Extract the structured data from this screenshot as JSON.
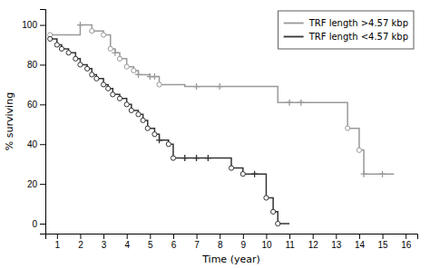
{
  "chart_data": {
    "type": "step",
    "xlabel": "Time (year)",
    "ylabel": "% surviving",
    "xlim": [
      0.5,
      16.5
    ],
    "ylim": [
      -5,
      108
    ],
    "xticks": [
      1,
      2,
      3,
      4,
      5,
      6,
      7,
      8,
      9,
      10,
      11,
      12,
      13,
      14,
      15,
      16
    ],
    "yticks": [
      0,
      20,
      40,
      60,
      80,
      100
    ],
    "grid": false,
    "legend": "upper right",
    "series": [
      {
        "name": "TRF length >4.57 kbp",
        "type": "step",
        "color": "#999999",
        "x": [
          0.7,
          1.0,
          2.0,
          2.0,
          2.5,
          3.0,
          3.3,
          3.5,
          3.7,
          4.0,
          4.3,
          4.5,
          5.0,
          5.2,
          5.4,
          6.5,
          7.0,
          8.0,
          10.5,
          11.0,
          11.5,
          13.0,
          13.5,
          14.0,
          14.2,
          15.0,
          15.5
        ],
        "values": [
          95,
          95,
          100,
          100,
          97,
          95,
          88,
          86,
          83,
          79,
          77,
          75,
          74,
          74,
          70,
          69,
          69,
          69,
          61,
          61,
          61,
          61,
          48,
          37,
          25,
          25,
          25
        ]
      },
      {
        "name": "TRF length <4.57 kbp",
        "type": "step",
        "color": "#333333",
        "x": [
          0.7,
          1.0,
          1.2,
          1.5,
          1.8,
          2.0,
          2.3,
          2.5,
          2.7,
          3.0,
          3.2,
          3.4,
          3.7,
          4.0,
          4.2,
          4.5,
          4.7,
          4.9,
          5.2,
          5.4,
          5.8,
          6.0,
          6.5,
          7.0,
          7.5,
          8.0,
          8.5,
          9.0,
          9.5,
          10.0,
          10.3,
          10.5,
          11.0
        ],
        "values": [
          93,
          90,
          88,
          86,
          83,
          80,
          78,
          75,
          73,
          70,
          68,
          65,
          63,
          60,
          57,
          55,
          52,
          48,
          45,
          42,
          40,
          33,
          33,
          33,
          33,
          33,
          28,
          25,
          25,
          13,
          6,
          0,
          0
        ]
      },
      {
        "type": "scatter",
        "marker": "circle",
        "color": "#999999",
        "x": [
          0.7,
          2.5,
          3.0,
          3.3,
          3.7,
          4.0,
          4.3,
          5.4,
          13.5,
          14.0
        ],
        "values": [
          95,
          97,
          95,
          88,
          83,
          79,
          77,
          70,
          48,
          37
        ]
      },
      {
        "type": "scatter",
        "marker": "plus",
        "color": "#999999",
        "x": [
          2.0,
          3.5,
          4.5,
          5.0,
          5.2,
          7.0,
          8.0,
          11.0,
          11.5,
          14.2,
          15.0
        ],
        "values": [
          100,
          86,
          75,
          74,
          74,
          69,
          69,
          61,
          61,
          25,
          25
        ]
      },
      {
        "type": "scatter",
        "marker": "circle",
        "color": "#333333",
        "x": [
          0.7,
          1.0,
          1.2,
          1.5,
          1.8,
          2.0,
          2.3,
          2.5,
          2.7,
          3.0,
          3.2,
          3.4,
          3.7,
          4.0,
          4.2,
          4.5,
          4.7,
          4.9,
          5.2,
          5.8,
          6.0,
          8.5,
          9.0,
          10.0,
          10.3,
          10.5
        ],
        "values": [
          93,
          90,
          88,
          86,
          83,
          80,
          78,
          75,
          73,
          70,
          68,
          65,
          63,
          60,
          57,
          55,
          52,
          48,
          45,
          40,
          33,
          28,
          25,
          13,
          6,
          0
        ]
      },
      {
        "type": "scatter",
        "marker": "plus",
        "color": "#333333",
        "x": [
          5.4,
          6.5,
          7.0,
          7.5,
          9.5
        ],
        "values": [
          42,
          33,
          33,
          33,
          25
        ]
      }
    ]
  }
}
